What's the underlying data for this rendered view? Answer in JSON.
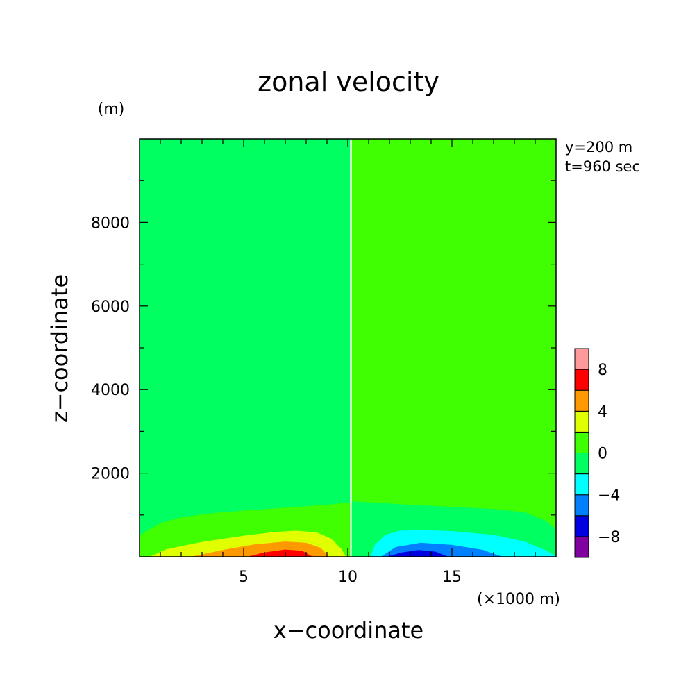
{
  "chart_data": {
    "type": "heatmap",
    "title": "zonal velocity",
    "xlabel": "x−coordinate",
    "ylabel": "z−coordinate",
    "x_unit": "(×1000 m)",
    "y_unit": "(m)",
    "annotations": [
      "y=200 m",
      "t=960 sec"
    ],
    "xlim": [
      0,
      20
    ],
    "ylim": [
      0,
      10000
    ],
    "x_ticks": [
      {
        "value": 5,
        "label": "5"
      },
      {
        "value": 10,
        "label": "10"
      },
      {
        "value": 15,
        "label": "15"
      }
    ],
    "y_ticks": [
      {
        "value": 2000,
        "label": "2000"
      },
      {
        "value": 4000,
        "label": "4000"
      },
      {
        "value": 6000,
        "label": "6000"
      },
      {
        "value": 8000,
        "label": "8000"
      }
    ],
    "colorbar": {
      "levels": [
        -10,
        -8,
        -6,
        -4,
        -2,
        0,
        2,
        4,
        6,
        8,
        10
      ],
      "colors": [
        "#8000a0",
        "#0000e0",
        "#0080ff",
        "#00ffff",
        "#00ff60",
        "#40ff00",
        "#e0ff00",
        "#ff9900",
        "#ff0000",
        "#ff9a9a"
      ],
      "tick_labels": [
        {
          "value": -8,
          "label": "−8"
        },
        {
          "value": -4,
          "label": "−4"
        },
        {
          "value": 0,
          "label": "0"
        },
        {
          "value": 4,
          "label": "4"
        },
        {
          "value": 8,
          "label": "8"
        }
      ]
    },
    "regions": [
      {
        "level": [
          -2,
          0
        ],
        "color": "#00ff60",
        "points": [
          [
            0,
            0
          ],
          [
            10.1,
            0
          ],
          [
            10.1,
            10000
          ],
          [
            0,
            10000
          ]
        ]
      },
      {
        "level": [
          0,
          2
        ],
        "color": "#40ff00",
        "points": [
          [
            10.2,
            0
          ],
          [
            20,
            0
          ],
          [
            20,
            10000
          ],
          [
            10.2,
            10000
          ]
        ]
      },
      {
        "level": [
          0,
          2
        ],
        "color": "#40ff00",
        "points": [
          [
            0,
            500
          ],
          [
            0.4,
            630
          ],
          [
            1,
            800
          ],
          [
            2,
            940
          ],
          [
            3.5,
            1040
          ],
          [
            5,
            1100
          ],
          [
            7,
            1170
          ],
          [
            9,
            1240
          ],
          [
            10.1,
            1300
          ],
          [
            10.1,
            0
          ],
          [
            0,
            0
          ]
        ]
      },
      {
        "level": [
          -2,
          0
        ],
        "color": "#00ff60",
        "points": [
          [
            10.2,
            0
          ],
          [
            10.2,
            1320
          ],
          [
            11,
            1300
          ],
          [
            13,
            1240
          ],
          [
            15,
            1190
          ],
          [
            17,
            1140
          ],
          [
            18.5,
            1060
          ],
          [
            19.5,
            860
          ],
          [
            20,
            660
          ],
          [
            20,
            0
          ]
        ]
      },
      {
        "level": [
          2,
          4
        ],
        "color": "#e0ff00",
        "points": [
          [
            0.5,
            0
          ],
          [
            1.3,
            180
          ],
          [
            3,
            350
          ],
          [
            5,
            500
          ],
          [
            6.5,
            590
          ],
          [
            7.5,
            620
          ],
          [
            8.5,
            580
          ],
          [
            9.2,
            430
          ],
          [
            9.7,
            180
          ],
          [
            9.9,
            0
          ]
        ]
      },
      {
        "level": [
          4,
          6
        ],
        "color": "#ff9900",
        "points": [
          [
            2.5,
            0
          ],
          [
            4,
            160
          ],
          [
            5.5,
            290
          ],
          [
            7,
            360
          ],
          [
            8,
            330
          ],
          [
            8.7,
            210
          ],
          [
            9.1,
            0
          ]
        ]
      },
      {
        "level": [
          6,
          8
        ],
        "color": "#ff0000",
        "points": [
          [
            5.2,
            0
          ],
          [
            6,
            100
          ],
          [
            7,
            170
          ],
          [
            7.8,
            140
          ],
          [
            8.3,
            0
          ]
        ]
      },
      {
        "level": [
          -4,
          -2
        ],
        "color": "#00ffff",
        "points": [
          [
            11.1,
            0
          ],
          [
            11.3,
            280
          ],
          [
            11.8,
            520
          ],
          [
            12.5,
            620
          ],
          [
            13.5,
            640
          ],
          [
            15,
            610
          ],
          [
            17,
            520
          ],
          [
            18.5,
            360
          ],
          [
            19.6,
            130
          ],
          [
            20,
            0
          ]
        ]
      },
      {
        "level": [
          -6,
          -4
        ],
        "color": "#0080ff",
        "points": [
          [
            11.6,
            0
          ],
          [
            12.3,
            230
          ],
          [
            13.5,
            330
          ],
          [
            15,
            280
          ],
          [
            16.5,
            160
          ],
          [
            17.4,
            0
          ]
        ]
      },
      {
        "level": [
          -8,
          -6
        ],
        "color": "#0000e0",
        "points": [
          [
            11.9,
            0
          ],
          [
            12.6,
            100
          ],
          [
            13.4,
            160
          ],
          [
            14.2,
            120
          ],
          [
            14.8,
            0
          ]
        ]
      }
    ]
  }
}
